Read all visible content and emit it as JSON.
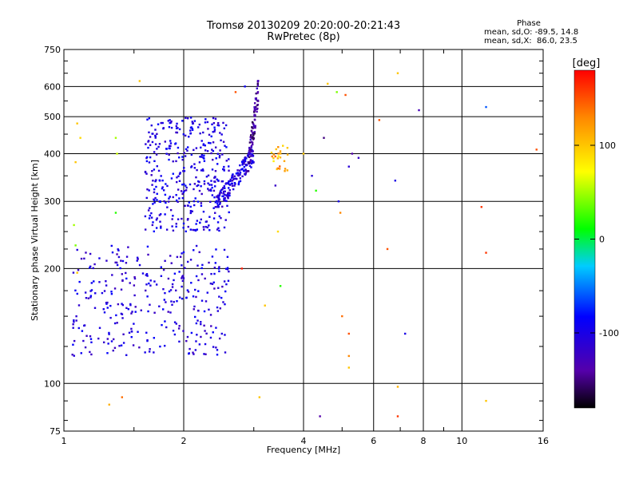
{
  "header": {
    "title_line1": "Tromsø 20130209 20:20:00-20:21:43",
    "title_line2": "RwPretec (8p)"
  },
  "phase_stats": {
    "heading": "Phase",
    "line1": "mean, sd,O: -89.5, 14.8",
    "line2": "mean, sd,X:  86.0, 23.5"
  },
  "colorbar": {
    "unit_label": "[deg]",
    "range": [
      -180,
      180
    ],
    "ticks": [
      "100",
      "0",
      "-100"
    ]
  },
  "chart_data": {
    "type": "scatter",
    "title": "Tromsø 20130209 20:20:00-20:21:43",
    "subtitle": "RwPretec (8p)",
    "xlabel": "Frequency [MHz]",
    "ylabel": "Stationary phase Virtual Height [km]",
    "xscale": "log",
    "yscale": "log",
    "xlim": [
      1,
      16
    ],
    "ylim": [
      75,
      750
    ],
    "xticks": [
      "1",
      "2",
      "4",
      "6",
      "8",
      "10",
      "16"
    ],
    "yticks": [
      "75",
      "100",
      "200",
      "300",
      "400",
      "500",
      "600",
      "750"
    ],
    "grid": true,
    "color_encoding": "phase [deg]",
    "clusters": [
      {
        "name": "O-trace lower F",
        "f_range": [
          1.05,
          2.6
        ],
        "h_range": [
          118,
          230
        ],
        "phase": -105,
        "count": 320
      },
      {
        "name": "O-trace upper F",
        "f_range": [
          1.6,
          2.6
        ],
        "h_range": [
          250,
          500
        ],
        "phase": -100,
        "count": 380
      },
      {
        "name": "O-trace rising",
        "f_range": [
          2.4,
          3.0
        ],
        "h_range": [
          290,
          420
        ],
        "phase": -105,
        "count": 160
      },
      {
        "name": "O-trace cusp",
        "f_range": [
          2.9,
          3.08
        ],
        "h_range": [
          360,
          640
        ],
        "phase": -140,
        "count": 90
      },
      {
        "name": "X-trace",
        "f_range": [
          3.3,
          3.7
        ],
        "h_range": [
          360,
          420
        ],
        "phase": 110,
        "count": 25
      }
    ],
    "sparse_points": [
      {
        "x": 1.08,
        "y": 480,
        "phase": 100
      },
      {
        "x": 1.1,
        "y": 440,
        "phase": 90
      },
      {
        "x": 1.07,
        "y": 380,
        "phase": 100
      },
      {
        "x": 1.06,
        "y": 260,
        "phase": 50
      },
      {
        "x": 1.07,
        "y": 230,
        "phase": 40
      },
      {
        "x": 1.08,
        "y": 195,
        "phase": 100
      },
      {
        "x": 1.35,
        "y": 440,
        "phase": 50
      },
      {
        "x": 1.36,
        "y": 400,
        "phase": 60
      },
      {
        "x": 1.35,
        "y": 280,
        "phase": 20
      },
      {
        "x": 1.36,
        "y": 218,
        "phase": -130
      },
      {
        "x": 1.55,
        "y": 620,
        "phase": 100
      },
      {
        "x": 1.4,
        "y": 92,
        "phase": 140
      },
      {
        "x": 1.3,
        "y": 88,
        "phase": 110
      },
      {
        "x": 2.7,
        "y": 580,
        "phase": 150
      },
      {
        "x": 2.85,
        "y": 600,
        "phase": -90
      },
      {
        "x": 2.8,
        "y": 200,
        "phase": 170
      },
      {
        "x": 3.1,
        "y": 92,
        "phase": 100
      },
      {
        "x": 3.4,
        "y": 330,
        "phase": -120
      },
      {
        "x": 3.45,
        "y": 250,
        "phase": 90
      },
      {
        "x": 3.5,
        "y": 180,
        "phase": 20
      },
      {
        "x": 3.2,
        "y": 160,
        "phase": 100
      },
      {
        "x": 4.0,
        "y": 400,
        "phase": 100
      },
      {
        "x": 4.2,
        "y": 350,
        "phase": -110
      },
      {
        "x": 4.3,
        "y": 320,
        "phase": 20
      },
      {
        "x": 4.5,
        "y": 440,
        "phase": -150
      },
      {
        "x": 4.6,
        "y": 610,
        "phase": 100
      },
      {
        "x": 4.85,
        "y": 580,
        "phase": 40
      },
      {
        "x": 4.9,
        "y": 300,
        "phase": -100
      },
      {
        "x": 4.95,
        "y": 280,
        "phase": 130
      },
      {
        "x": 5.1,
        "y": 570,
        "phase": 150
      },
      {
        "x": 5.2,
        "y": 370,
        "phase": -110
      },
      {
        "x": 5.3,
        "y": 400,
        "phase": -140
      },
      {
        "x": 5.5,
        "y": 390,
        "phase": -120
      },
      {
        "x": 5.0,
        "y": 150,
        "phase": 140
      },
      {
        "x": 5.2,
        "y": 135,
        "phase": 150
      },
      {
        "x": 5.2,
        "y": 118,
        "phase": 130
      },
      {
        "x": 5.2,
        "y": 110,
        "phase": 100
      },
      {
        "x": 4.4,
        "y": 82,
        "phase": -140
      },
      {
        "x": 6.2,
        "y": 490,
        "phase": 150
      },
      {
        "x": 6.5,
        "y": 225,
        "phase": 150
      },
      {
        "x": 6.8,
        "y": 340,
        "phase": -100
      },
      {
        "x": 6.9,
        "y": 650,
        "phase": 100
      },
      {
        "x": 7.2,
        "y": 135,
        "phase": -100
      },
      {
        "x": 6.9,
        "y": 82,
        "phase": 160
      },
      {
        "x": 6.9,
        "y": 98,
        "phase": 110
      },
      {
        "x": 7.8,
        "y": 520,
        "phase": -130
      },
      {
        "x": 11.5,
        "y": 530,
        "phase": -60
      },
      {
        "x": 11.2,
        "y": 290,
        "phase": 160
      },
      {
        "x": 11.5,
        "y": 220,
        "phase": 160
      },
      {
        "x": 11.5,
        "y": 90,
        "phase": 100
      },
      {
        "x": 15.4,
        "y": 410,
        "phase": 150
      }
    ]
  }
}
